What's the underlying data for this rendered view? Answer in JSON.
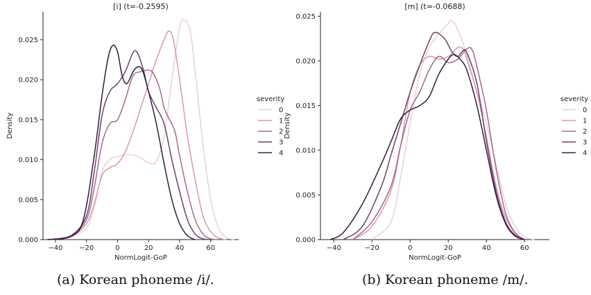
{
  "captions": [
    "(a) Korean phoneme /i/.",
    "(b) Korean phoneme /m/."
  ],
  "chart_data": [
    {
      "type": "line",
      "title": "[i] (t=-0.2595)",
      "xlabel": "NormLogit-GoP",
      "ylabel": "Density",
      "xlim": [
        -48,
        78
      ],
      "ylim": [
        0,
        0.0285
      ],
      "xticks": [
        -40,
        -20,
        0,
        20,
        40,
        60
      ],
      "yticks": [
        0.0,
        0.005,
        0.01,
        0.015,
        0.02,
        0.025
      ],
      "ytick_labels": [
        "0.000",
        "0.005",
        "0.010",
        "0.015",
        "0.020",
        "0.025"
      ],
      "legend": {
        "title": "severity",
        "placement": "right"
      },
      "grid": false,
      "series": [
        {
          "name": "0",
          "color": "#ecd1cc",
          "points": [
            [
              -45,
              0.0
            ],
            [
              -30,
              0.0003
            ],
            [
              -20,
              0.0015
            ],
            [
              -15,
              0.004
            ],
            [
              -10,
              0.0085
            ],
            [
              -5,
              0.01
            ],
            [
              0,
              0.0104
            ],
            [
              5,
              0.0106
            ],
            [
              10,
              0.0106
            ],
            [
              15,
              0.0102
            ],
            [
              20,
              0.0096
            ],
            [
              25,
              0.0098
            ],
            [
              30,
              0.013
            ],
            [
              35,
              0.02
            ],
            [
              40,
              0.0265
            ],
            [
              43,
              0.0275
            ],
            [
              47,
              0.026
            ],
            [
              50,
              0.021
            ],
            [
              55,
              0.012
            ],
            [
              60,
              0.005
            ],
            [
              65,
              0.0015
            ],
            [
              70,
              0.0003
            ],
            [
              75,
              0.0
            ]
          ]
        },
        {
          "name": "1",
          "color": "#d499ab",
          "points": [
            [
              -45,
              0.0
            ],
            [
              -30,
              0.0004
            ],
            [
              -20,
              0.002
            ],
            [
              -15,
              0.0045
            ],
            [
              -10,
              0.008
            ],
            [
              -5,
              0.009
            ],
            [
              0,
              0.0095
            ],
            [
              5,
              0.011
            ],
            [
              10,
              0.0135
            ],
            [
              15,
              0.0165
            ],
            [
              20,
              0.0195
            ],
            [
              25,
              0.0225
            ],
            [
              30,
              0.025
            ],
            [
              33,
              0.0261
            ],
            [
              36,
              0.025
            ],
            [
              40,
              0.02
            ],
            [
              45,
              0.013
            ],
            [
              50,
              0.0075
            ],
            [
              55,
              0.003
            ],
            [
              60,
              0.001
            ],
            [
              65,
              0.0002
            ],
            [
              70,
              0.0
            ]
          ]
        },
        {
          "name": "2",
          "color": "#a56690",
          "points": [
            [
              -45,
              0.0
            ],
            [
              -30,
              0.0005
            ],
            [
              -20,
              0.0025
            ],
            [
              -15,
              0.0065
            ],
            [
              -10,
              0.012
            ],
            [
              -5,
              0.0145
            ],
            [
              0,
              0.015
            ],
            [
              5,
              0.0175
            ],
            [
              10,
              0.0205
            ],
            [
              15,
              0.021
            ],
            [
              20,
              0.0212
            ],
            [
              23,
              0.0208
            ],
            [
              27,
              0.019
            ],
            [
              30,
              0.0165
            ],
            [
              33,
              0.0152
            ],
            [
              37,
              0.0135
            ],
            [
              40,
              0.0105
            ],
            [
              45,
              0.006
            ],
            [
              50,
              0.0025
            ],
            [
              55,
              0.0007
            ],
            [
              60,
              0.0001
            ],
            [
              65,
              0.0
            ]
          ]
        },
        {
          "name": "3",
          "color": "#6f3f6b",
          "points": [
            [
              -45,
              0.0
            ],
            [
              -30,
              0.0005
            ],
            [
              -20,
              0.003
            ],
            [
              -15,
              0.0085
            ],
            [
              -10,
              0.0155
            ],
            [
              -5,
              0.0185
            ],
            [
              0,
              0.0195
            ],
            [
              5,
              0.021
            ],
            [
              10,
              0.0234
            ],
            [
              13,
              0.0233
            ],
            [
              17,
              0.021
            ],
            [
              20,
              0.0185
            ],
            [
              25,
              0.0165
            ],
            [
              30,
              0.0145
            ],
            [
              35,
              0.01
            ],
            [
              40,
              0.006
            ],
            [
              45,
              0.0025
            ],
            [
              50,
              0.0007
            ],
            [
              55,
              0.0001
            ],
            [
              60,
              0.0
            ]
          ]
        },
        {
          "name": "4",
          "color": "#2c1d3c",
          "points": [
            [
              -45,
              0.0
            ],
            [
              -30,
              0.0004
            ],
            [
              -22,
              0.0025
            ],
            [
              -15,
              0.0105
            ],
            [
              -10,
              0.018
            ],
            [
              -6,
              0.0228
            ],
            [
              -3,
              0.0243
            ],
            [
              0,
              0.0235
            ],
            [
              3,
              0.0205
            ],
            [
              6,
              0.0195
            ],
            [
              10,
              0.021
            ],
            [
              13,
              0.0216
            ],
            [
              16,
              0.0212
            ],
            [
              20,
              0.0185
            ],
            [
              25,
              0.0145
            ],
            [
              30,
              0.0095
            ],
            [
              35,
              0.005
            ],
            [
              40,
              0.002
            ],
            [
              45,
              0.0005
            ],
            [
              50,
              0.0
            ]
          ]
        }
      ]
    },
    {
      "type": "line",
      "title": "[m] (t=-0.0688)",
      "xlabel": "NormLogit-GoP",
      "ylabel": "Density",
      "xlim": [
        -47,
        73
      ],
      "ylim": [
        0,
        0.0255
      ],
      "xticks": [
        -40,
        -20,
        0,
        20,
        40,
        60
      ],
      "yticks": [
        0.0,
        0.005,
        0.01,
        0.015,
        0.02,
        0.025
      ],
      "ytick_labels": [
        "0.000",
        "0.005",
        "0.010",
        "0.015",
        "0.020",
        "0.025"
      ],
      "legend": {
        "title": "severity",
        "placement": "right"
      },
      "grid": false,
      "series": [
        {
          "name": "0",
          "color": "#ecd1cc",
          "points": [
            [
              -20,
              0.0
            ],
            [
              -10,
              0.002
            ],
            [
              -5,
              0.007
            ],
            [
              0,
              0.013
            ],
            [
              5,
              0.0185
            ],
            [
              10,
              0.0215
            ],
            [
              15,
              0.023
            ],
            [
              20,
              0.0242
            ],
            [
              22,
              0.0245
            ],
            [
              25,
              0.0235
            ],
            [
              30,
              0.0205
            ],
            [
              35,
              0.0165
            ],
            [
              40,
              0.013
            ],
            [
              45,
              0.0085
            ],
            [
              50,
              0.004
            ],
            [
              55,
              0.0015
            ],
            [
              60,
              0.0003
            ],
            [
              65,
              0.0
            ]
          ]
        },
        {
          "name": "1",
          "color": "#d499ab",
          "points": [
            [
              -30,
              0.0
            ],
            [
              -20,
              0.0015
            ],
            [
              -10,
              0.0055
            ],
            [
              -5,
              0.0105
            ],
            [
              0,
              0.0165
            ],
            [
              5,
              0.0195
            ],
            [
              10,
              0.0205
            ],
            [
              15,
              0.0202
            ],
            [
              20,
              0.0205
            ],
            [
              25,
              0.0215
            ],
            [
              28,
              0.0213
            ],
            [
              30,
              0.02
            ],
            [
              35,
              0.0165
            ],
            [
              40,
              0.0115
            ],
            [
              45,
              0.006
            ],
            [
              50,
              0.0025
            ],
            [
              55,
              0.0007
            ],
            [
              60,
              0.0
            ]
          ]
        },
        {
          "name": "2",
          "color": "#a56690",
          "points": [
            [
              -30,
              0.0
            ],
            [
              -20,
              0.002
            ],
            [
              -10,
              0.006
            ],
            [
              -5,
              0.0105
            ],
            [
              0,
              0.0145
            ],
            [
              5,
              0.0165
            ],
            [
              10,
              0.019
            ],
            [
              15,
              0.0205
            ],
            [
              20,
              0.0198
            ],
            [
              25,
              0.0202
            ],
            [
              30,
              0.0214
            ],
            [
              33,
              0.021
            ],
            [
              37,
              0.0175
            ],
            [
              40,
              0.0145
            ],
            [
              45,
              0.008
            ],
            [
              50,
              0.003
            ],
            [
              55,
              0.0008
            ],
            [
              60,
              0.0
            ]
          ]
        },
        {
          "name": "3",
          "color": "#6f3f6b",
          "points": [
            [
              -35,
              0.0
            ],
            [
              -25,
              0.0015
            ],
            [
              -15,
              0.006
            ],
            [
              -10,
              0.0095
            ],
            [
              -5,
              0.013
            ],
            [
              0,
              0.0165
            ],
            [
              5,
              0.0195
            ],
            [
              10,
              0.0222
            ],
            [
              13,
              0.0232
            ],
            [
              18,
              0.0225
            ],
            [
              22,
              0.021
            ],
            [
              25,
              0.0205
            ],
            [
              28,
              0.0212
            ],
            [
              30,
              0.0208
            ],
            [
              35,
              0.0175
            ],
            [
              40,
              0.011
            ],
            [
              45,
              0.0055
            ],
            [
              50,
              0.002
            ],
            [
              55,
              0.0005
            ],
            [
              60,
              0.0
            ]
          ]
        },
        {
          "name": "4",
          "color": "#2c1d3c",
          "points": [
            [
              -42,
              0.0
            ],
            [
              -35,
              0.0008
            ],
            [
              -25,
              0.004
            ],
            [
              -15,
              0.0085
            ],
            [
              -10,
              0.011
            ],
            [
              -5,
              0.0135
            ],
            [
              0,
              0.0145
            ],
            [
              5,
              0.015
            ],
            [
              10,
              0.016
            ],
            [
              15,
              0.0185
            ],
            [
              20,
              0.0202
            ],
            [
              23,
              0.0207
            ],
            [
              27,
              0.02
            ],
            [
              30,
              0.0188
            ],
            [
              35,
              0.015
            ],
            [
              40,
              0.01
            ],
            [
              45,
              0.005
            ],
            [
              50,
              0.0018
            ],
            [
              55,
              0.0004
            ],
            [
              60,
              0.0
            ]
          ]
        }
      ]
    }
  ]
}
